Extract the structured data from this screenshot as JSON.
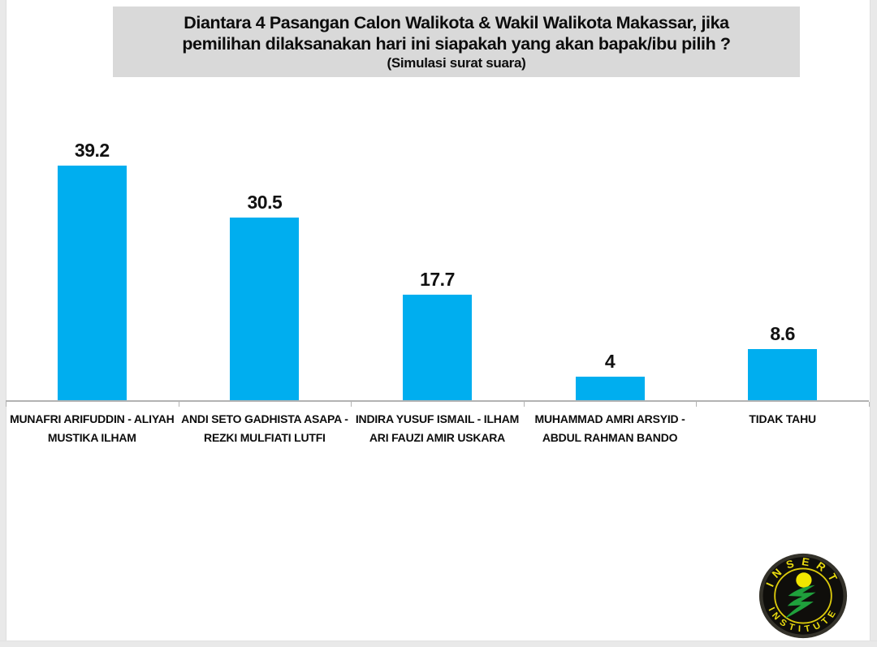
{
  "title_box": {
    "line1": "Diantara 4 Pasangan Calon Walikota & Wakil Walikota Makassar, jika",
    "line2": "pemilihan dilaksanakan hari ini siapakah yang akan bapak/ibu pilih ?",
    "subtitle": "(Simulasi surat suara)",
    "background": "#d9d9d9",
    "text_color": "#0d0d0d"
  },
  "chart_data": {
    "type": "bar",
    "title": "Diantara 4 Pasangan Calon Walikota & Wakil Walikota Makassar, jika pemilihan dilaksanakan hari ini siapakah yang akan bapak/ibu pilih ? (Simulasi surat suara)",
    "categories": [
      "MUNAFRI ARIFUDDIN - ALIYAH MUSTIKA ILHAM",
      "ANDI SETO GADHISTA ASAPA - REZKI MULFIATI LUTFI",
      "INDIRA YUSUF ISMAIL - ILHAM ARI FAUZI AMIR USKARA",
      "MUHAMMAD AMRI ARSYID - ABDUL RAHMAN BANDO",
      "TIDAK TAHU"
    ],
    "values": [
      39.2,
      30.5,
      17.7,
      4,
      8.6
    ],
    "value_labels": [
      "39.2",
      "30.5",
      "17.7",
      "4",
      "8.6"
    ],
    "bar_color": "#00aeef",
    "axis_color": "#b3b3b3",
    "ylim": [
      0,
      54
    ],
    "xlabel": "",
    "ylabel": "",
    "grid": false,
    "legend": false,
    "data_labels_shown": true
  },
  "logo": {
    "top_text": "INSERT",
    "bottom_text": "INSTITUTE",
    "rim_color": "#34322a",
    "disc_color": "#0f0e0b",
    "ring_color": "#ddcb0c",
    "text_color": "#e9db10",
    "sun_color": "#f2e600",
    "swoosh_color": "#1fa03c"
  },
  "page": {
    "background": "#ffffff",
    "gutter_color": "#e9e9e9"
  }
}
